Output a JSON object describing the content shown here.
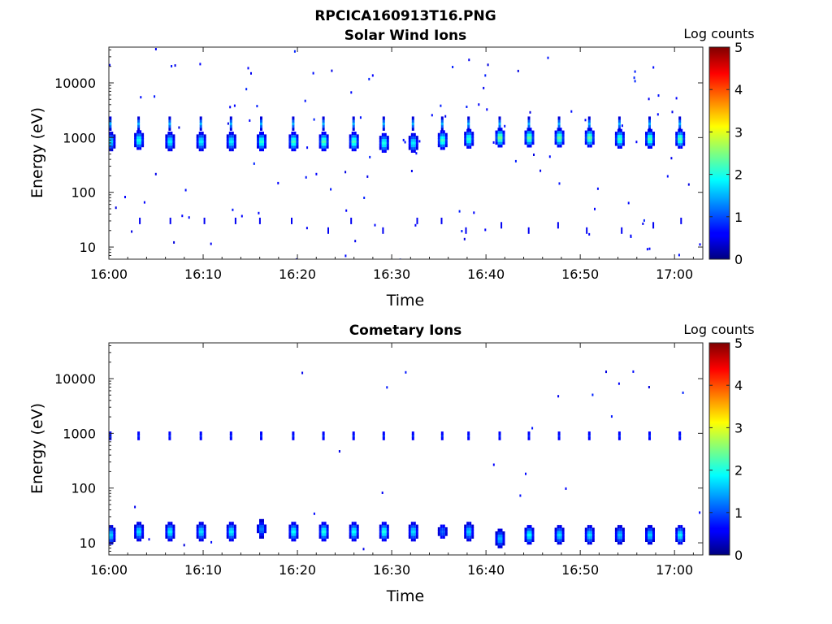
{
  "figure": {
    "title": "RPCICA160913T16.PNG"
  },
  "chart_data": [
    {
      "type": "heatmap",
      "title": "Solar Wind Ions",
      "xlabel": "Time",
      "ylabel": "Energy (eV)",
      "yscale": "log",
      "ylim": [
        6,
        45000
      ],
      "xlim": [
        "16:00",
        "17:03"
      ],
      "x_ticks": [
        "16:00",
        "16:10",
        "16:20",
        "16:30",
        "16:40",
        "16:50",
        "17:00"
      ],
      "y_ticks": [
        "10",
        "100",
        "1000",
        "10000"
      ],
      "colorbar": {
        "label": "Log counts",
        "range": [
          0,
          5
        ],
        "ticks": [
          "0",
          "1",
          "2",
          "3",
          "4",
          "5"
        ]
      },
      "grid": false,
      "scan_times": [
        "16:00.2",
        "16:03.2",
        "16:06.5",
        "16:09.8",
        "16:13.0",
        "16:16.2",
        "16:19.6",
        "16:22.8",
        "16:26.0",
        "16:29.2",
        "16:32.3",
        "16:35.4",
        "16:38.2",
        "16:41.5",
        "16:44.6",
        "16:47.8",
        "16:51.0",
        "16:54.2",
        "16:57.4",
        "17:00.6"
      ],
      "clusters": [
        {
          "time": "16:00.2",
          "energy_eV": 850,
          "peak_log_counts": 1.8
        },
        {
          "time": "16:03.2",
          "energy_eV": 900,
          "peak_log_counts": 2.2
        },
        {
          "time": "16:06.5",
          "energy_eV": 850,
          "peak_log_counts": 2.0
        },
        {
          "time": "16:09.8",
          "energy_eV": 850,
          "peak_log_counts": 2.0
        },
        {
          "time": "16:13.0",
          "energy_eV": 850,
          "peak_log_counts": 2.0
        },
        {
          "time": "16:16.2",
          "energy_eV": 850,
          "peak_log_counts": 2.3
        },
        {
          "time": "16:19.6",
          "energy_eV": 850,
          "peak_log_counts": 2.4
        },
        {
          "time": "16:22.8",
          "energy_eV": 850,
          "peak_log_counts": 2.5
        },
        {
          "time": "16:26.0",
          "energy_eV": 850,
          "peak_log_counts": 2.4
        },
        {
          "time": "16:29.2",
          "energy_eV": 800,
          "peak_log_counts": 2.2
        },
        {
          "time": "16:32.3",
          "energy_eV": 800,
          "peak_log_counts": 2.0
        },
        {
          "time": "16:35.4",
          "energy_eV": 900,
          "peak_log_counts": 2.4
        },
        {
          "time": "16:38.2",
          "energy_eV": 950,
          "peak_log_counts": 2.3
        },
        {
          "time": "16:41.5",
          "energy_eV": 1000,
          "peak_log_counts": 2.7
        },
        {
          "time": "16:44.6",
          "energy_eV": 1000,
          "peak_log_counts": 2.6
        },
        {
          "time": "16:47.8",
          "energy_eV": 1000,
          "peak_log_counts": 2.6
        },
        {
          "time": "16:51.0",
          "energy_eV": 1000,
          "peak_log_counts": 2.6
        },
        {
          "time": "16:54.2",
          "energy_eV": 950,
          "peak_log_counts": 2.4
        },
        {
          "time": "16:57.4",
          "energy_eV": 950,
          "peak_log_counts": 2.5
        },
        {
          "time": "17:00.6",
          "energy_eV": 950,
          "peak_log_counts": 2.5
        }
      ],
      "upper_component": {
        "energy_eV": 1800,
        "peak_log_counts": 1.5
      },
      "low_energy_traces_eV": [
        20,
        25,
        30
      ],
      "background": "sparse single-count noise (log counts 0.3-0.8)"
    },
    {
      "type": "heatmap",
      "title": "Cometary Ions",
      "xlabel": "Time",
      "ylabel": "Energy (eV)",
      "yscale": "log",
      "ylim": [
        6,
        45000
      ],
      "xlim": [
        "16:00",
        "17:03"
      ],
      "x_ticks": [
        "16:00",
        "16:10",
        "16:20",
        "16:30",
        "16:40",
        "16:50",
        "17:00"
      ],
      "y_ticks": [
        "10",
        "100",
        "1000",
        "10000"
      ],
      "colorbar": {
        "label": "Log counts",
        "range": [
          0,
          5
        ],
        "ticks": [
          "0",
          "1",
          "2",
          "3",
          "4",
          "5"
        ]
      },
      "grid": false,
      "scan_times": [
        "16:00.2",
        "16:03.2",
        "16:06.5",
        "16:09.8",
        "16:13.0",
        "16:16.2",
        "16:19.6",
        "16:22.8",
        "16:26.0",
        "16:29.2",
        "16:32.3",
        "16:35.4",
        "16:38.2",
        "16:41.5",
        "16:44.6",
        "16:47.8",
        "16:51.0",
        "16:54.2",
        "16:57.4",
        "17:00.6"
      ],
      "clusters": [
        {
          "time": "16:00.2",
          "energy_eV": 14,
          "peak_log_counts": 1.8
        },
        {
          "time": "16:03.2",
          "energy_eV": 16,
          "peak_log_counts": 1.9
        },
        {
          "time": "16:06.5",
          "energy_eV": 16,
          "peak_log_counts": 2.0
        },
        {
          "time": "16:09.8",
          "energy_eV": 16,
          "peak_log_counts": 1.9
        },
        {
          "time": "16:13.0",
          "energy_eV": 16,
          "peak_log_counts": 2.0
        },
        {
          "time": "16:16.2",
          "energy_eV": 18,
          "peak_log_counts": 1.4
        },
        {
          "time": "16:19.6",
          "energy_eV": 16,
          "peak_log_counts": 2.1
        },
        {
          "time": "16:22.8",
          "energy_eV": 16,
          "peak_log_counts": 2.2
        },
        {
          "time": "16:26.0",
          "energy_eV": 16,
          "peak_log_counts": 2.1
        },
        {
          "time": "16:29.2",
          "energy_eV": 16,
          "peak_log_counts": 2.2
        },
        {
          "time": "16:32.3",
          "energy_eV": 16,
          "peak_log_counts": 1.9
        },
        {
          "time": "16:35.4",
          "energy_eV": 16,
          "peak_log_counts": 1.2
        },
        {
          "time": "16:38.2",
          "energy_eV": 16,
          "peak_log_counts": 1.8
        },
        {
          "time": "16:41.5",
          "energy_eV": 12,
          "peak_log_counts": 1.7
        },
        {
          "time": "16:44.6",
          "energy_eV": 14,
          "peak_log_counts": 2.1
        },
        {
          "time": "16:47.8",
          "energy_eV": 14,
          "peak_log_counts": 1.9
        },
        {
          "time": "16:51.0",
          "energy_eV": 14,
          "peak_log_counts": 1.9
        },
        {
          "time": "16:54.2",
          "energy_eV": 14,
          "peak_log_counts": 1.7
        },
        {
          "time": "16:57.4",
          "energy_eV": 14,
          "peak_log_counts": 1.8
        },
        {
          "time": "17:00.6",
          "energy_eV": 14,
          "peak_log_counts": 2.0
        }
      ],
      "upper_component": {
        "energy_eV": 900,
        "peak_log_counts": 0.8
      },
      "background": "sparse single-count noise (log counts 0.3-0.8)"
    }
  ]
}
